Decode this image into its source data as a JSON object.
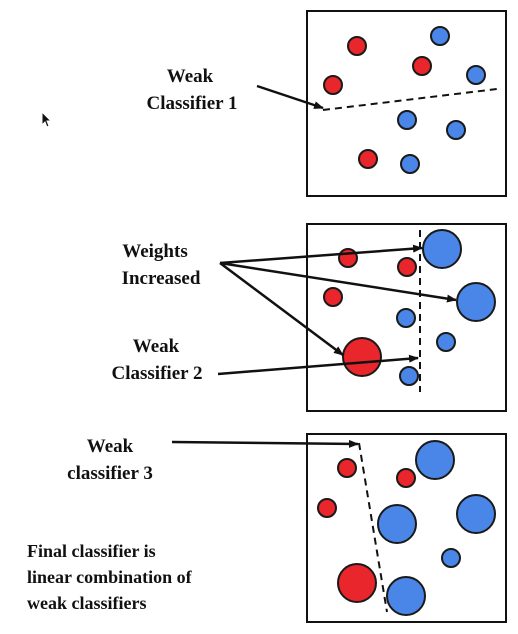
{
  "labels": {
    "weak1_line1": "Weak",
    "weak1_line2": "Classifier 1",
    "weights_line1": "Weights",
    "weights_line2": "Increased",
    "weak2_line1": "Weak",
    "weak2_line2": "Classifier 2",
    "weak3_line1": "Weak",
    "weak3_line2": "classifier 3",
    "final_line1": "Final classifier is",
    "final_line2": "linear combination of",
    "final_line3": "weak classifiers"
  },
  "colors": {
    "red": "#e8262b",
    "blue": "#4a86e8",
    "stroke": "#1a1a1a",
    "text": "#111111"
  },
  "icons": {
    "cursor": "mouse-pointer-icon"
  }
}
